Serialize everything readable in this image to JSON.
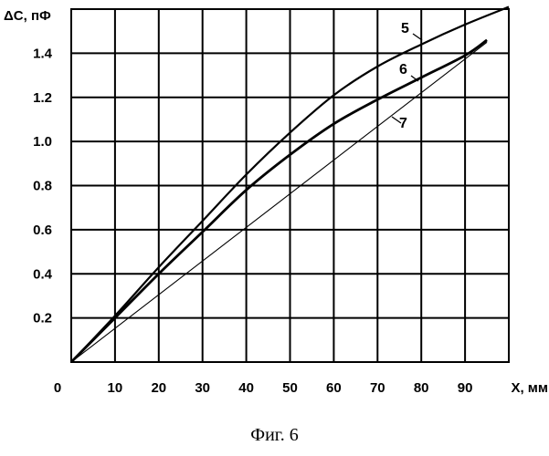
{
  "figure_caption": "Фиг. 6",
  "chart_data": {
    "type": "line",
    "title": "",
    "xlabel": "X, мм",
    "ylabel": "ΔC, пФ",
    "xlim": [
      0,
      100
    ],
    "ylim": [
      0,
      1.6
    ],
    "grid": true,
    "origin_label": "0",
    "x_ticks": [
      "10",
      "20",
      "30",
      "40",
      "50",
      "60",
      "70",
      "80",
      "90"
    ],
    "y_ticks": [
      "0.2",
      "0.4",
      "0.6",
      "0.8",
      "1.0",
      "1.2",
      "1.4"
    ],
    "series": [
      {
        "name": "5",
        "x": [
          0,
          10,
          20,
          30,
          40,
          50,
          60,
          70,
          80,
          90,
          100
        ],
        "y": [
          0,
          0.21,
          0.43,
          0.64,
          0.85,
          1.04,
          1.21,
          1.34,
          1.44,
          1.53,
          1.61
        ]
      },
      {
        "name": "6",
        "x": [
          0,
          10,
          20,
          30,
          40,
          50,
          60,
          70,
          80,
          90,
          95
        ],
        "y": [
          0,
          0.2,
          0.4,
          0.59,
          0.78,
          0.94,
          1.08,
          1.19,
          1.29,
          1.39,
          1.46
        ]
      },
      {
        "name": "7",
        "x": [
          0,
          95
        ],
        "y": [
          0,
          1.45
        ]
      }
    ]
  }
}
